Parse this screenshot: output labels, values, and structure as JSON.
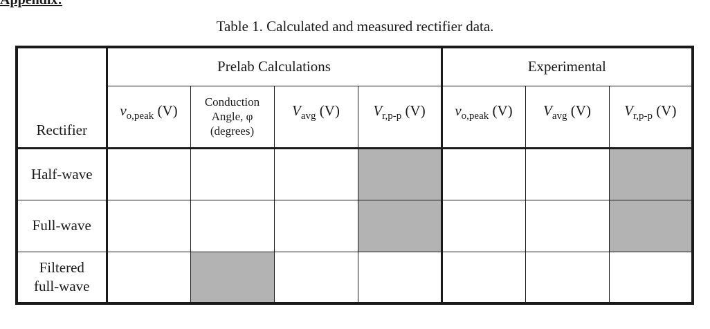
{
  "appendix": "Appendix:",
  "caption": "Table 1. Calculated and measured rectifier data.",
  "table": {
    "corner_label": "Rectifier",
    "groups": [
      "Prelab Calculations",
      "Experimental"
    ],
    "columns": [
      {
        "var": "v",
        "sub": "o,peak",
        "unit": " (V)"
      },
      {
        "text": "Conduction Angle, φ (degrees)"
      },
      {
        "var": "V",
        "sub": "avg",
        "unit": " (V)"
      },
      {
        "var": "V",
        "sub": "r,p-p",
        "unit": " (V)"
      },
      {
        "var": "v",
        "sub": "o,peak",
        "unit": " (V)"
      },
      {
        "var": "V",
        "sub": "avg",
        "unit": " (V)"
      },
      {
        "var": "V",
        "sub": "r,p-p",
        "unit": " (V)"
      }
    ],
    "rows": [
      {
        "label": "Half-wave",
        "shaded": [
          false,
          false,
          false,
          true,
          false,
          false,
          true
        ]
      },
      {
        "label": "Full-wave",
        "shaded": [
          false,
          false,
          false,
          true,
          false,
          false,
          true
        ]
      },
      {
        "label": "Filtered full-wave",
        "shaded": [
          false,
          true,
          false,
          false,
          false,
          false,
          false
        ]
      }
    ]
  }
}
